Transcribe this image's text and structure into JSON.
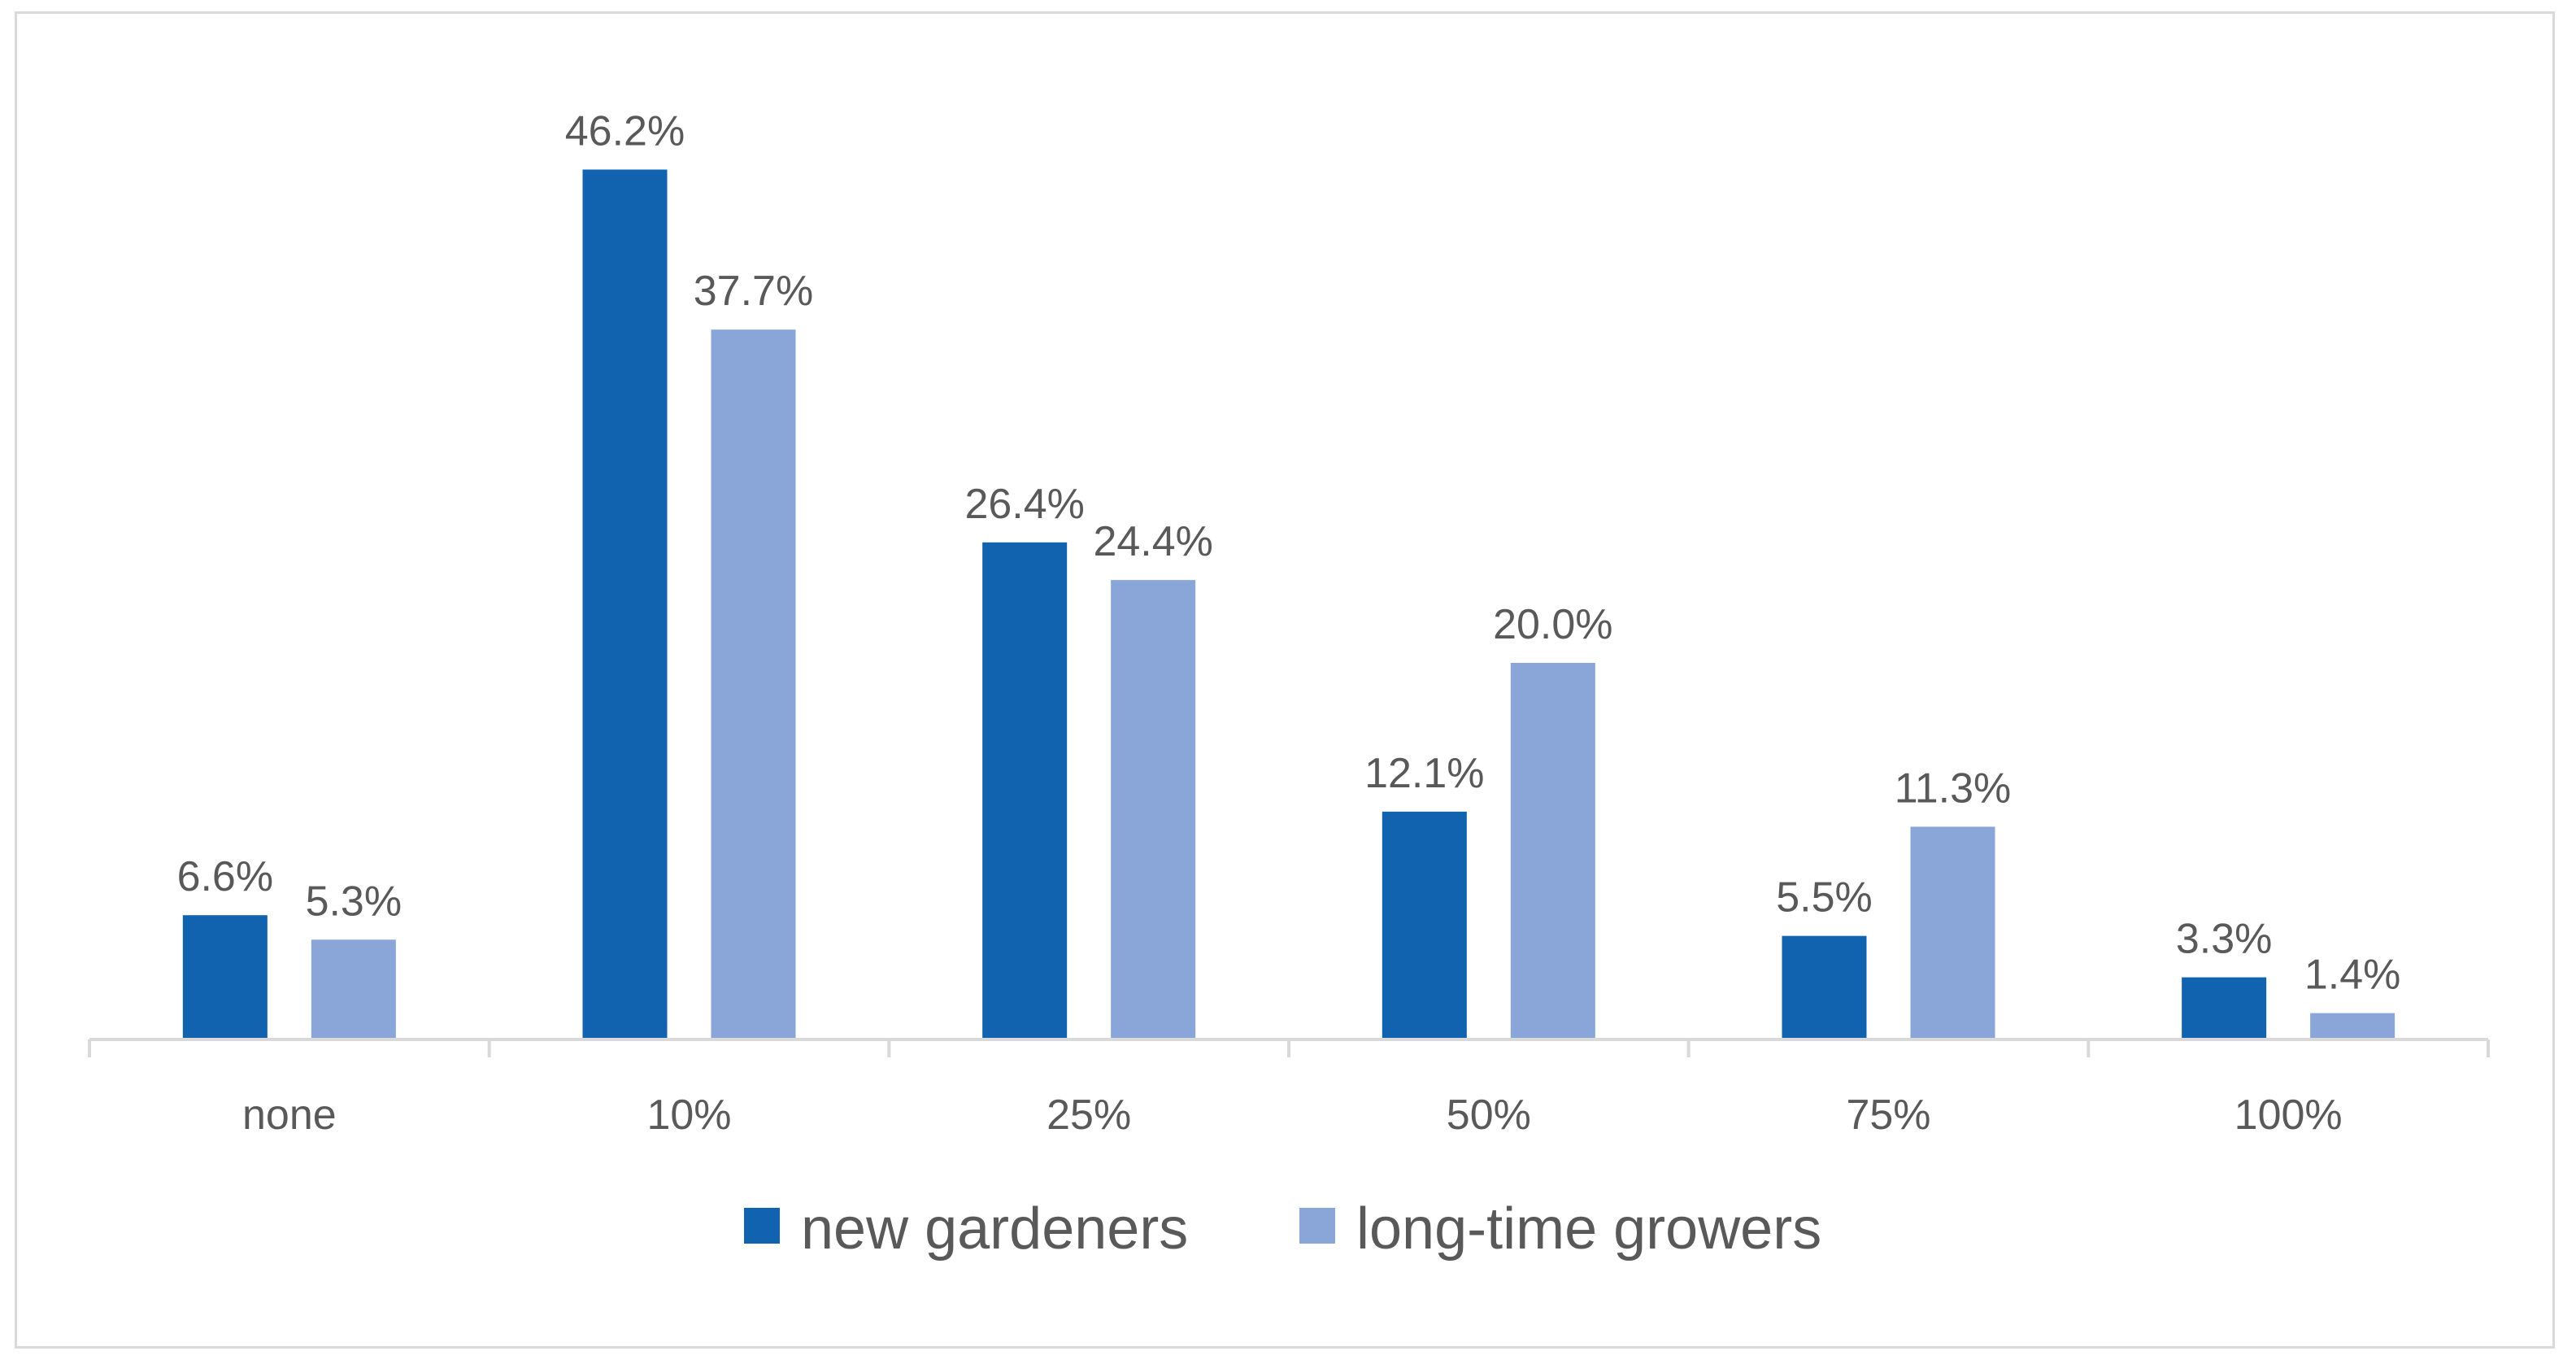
{
  "chart_data": {
    "type": "bar",
    "title": "",
    "xlabel": "",
    "ylabel": "",
    "categories": [
      "none",
      "10%",
      "25%",
      "50%",
      "75%",
      "100%"
    ],
    "series": [
      {
        "name": "new gardeners",
        "color": "#1163b0",
        "values": [
          6.6,
          46.2,
          26.4,
          12.1,
          5.5,
          3.3
        ],
        "labels": [
          "6.6%",
          "46.2%",
          "26.4%",
          "12.1%",
          "5.5%",
          "3.3%"
        ]
      },
      {
        "name": "long-time growers",
        "color": "#8aa6d9",
        "values": [
          5.3,
          37.7,
          24.4,
          20.0,
          11.3,
          1.4
        ],
        "labels": [
          "5.3%",
          "37.7%",
          "24.4%",
          "20.0%",
          "11.3%",
          "1.4%"
        ]
      }
    ],
    "ylim": [
      0,
      50
    ],
    "grid": false,
    "legend_position": "bottom"
  }
}
